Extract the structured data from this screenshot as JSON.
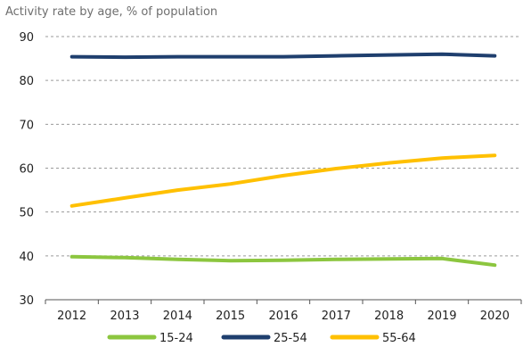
{
  "chart_data": {
    "type": "line",
    "title": "Activity rate by age, % of population",
    "xlabel": "",
    "ylabel": "",
    "x": [
      "2012",
      "2013",
      "2014",
      "2015",
      "2016",
      "2017",
      "2018",
      "2019",
      "2020"
    ],
    "ylim": [
      30,
      90
    ],
    "yticks": [
      30,
      40,
      50,
      60,
      70,
      80,
      90
    ],
    "grid": "horizontal dashed",
    "legend": "bottom",
    "series": [
      {
        "name": "15-24",
        "color": "#8cc63f",
        "values": [
          39.8,
          39.6,
          39.2,
          38.9,
          39.0,
          39.2,
          39.3,
          39.4,
          37.9
        ]
      },
      {
        "name": "25-54",
        "color": "#1f3f6e",
        "values": [
          85.4,
          85.3,
          85.4,
          85.4,
          85.4,
          85.6,
          85.8,
          86.0,
          85.6
        ]
      },
      {
        "name": "55-64",
        "color": "#ffc000",
        "values": [
          51.4,
          53.2,
          55.0,
          56.4,
          58.3,
          59.9,
          61.2,
          62.3,
          62.9
        ]
      }
    ]
  }
}
